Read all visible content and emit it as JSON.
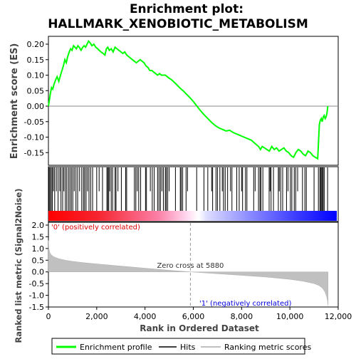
{
  "chart_data": [
    {
      "type": "line",
      "title_line1": "Enrichment plot:",
      "title_line2": "HALLMARK_XENOBIOTIC_METABOLISM",
      "ylabel": "Enrichment score (ES)",
      "ylim": [
        -0.2,
        0.225
      ],
      "xlim": [
        0,
        12000
      ],
      "y_ticks": [
        "0.20",
        "0.15",
        "0.10",
        "0.05",
        "0.00",
        "-0.05",
        "-0.10",
        "-0.15"
      ],
      "y_tick_values": [
        0.2,
        0.15,
        0.1,
        0.05,
        0.0,
        -0.05,
        -0.1,
        -0.15
      ],
      "series": [
        {
          "name": "Enrichment profile",
          "color": "#00ff00",
          "x": [
            0,
            40,
            80,
            130,
            180,
            230,
            300,
            360,
            430,
            500,
            560,
            620,
            680,
            740,
            800,
            860,
            920,
            980,
            1040,
            1100,
            1160,
            1220,
            1280,
            1350,
            1420,
            1480,
            1540,
            1600,
            1660,
            1720,
            1800,
            1880,
            1960,
            2040,
            2100,
            2180,
            2260,
            2340,
            2400,
            2460,
            2520,
            2600,
            2680,
            2760,
            2840,
            2920,
            3000,
            3080,
            3160,
            3240,
            3320,
            3400,
            3480,
            3560,
            3640,
            3720,
            3800,
            3880,
            3960,
            4040,
            4120,
            4200,
            4280,
            4360,
            4440,
            4520,
            4600,
            4680,
            4760,
            4840,
            4920,
            5000,
            5100,
            5200,
            5300,
            5400,
            5500,
            5600,
            5700,
            5800,
            5900,
            6000,
            6150,
            6300,
            6450,
            6600,
            6750,
            6900,
            7050,
            7200,
            7350,
            7500,
            7650,
            7800,
            7950,
            8100,
            8250,
            8400,
            8550,
            8700,
            8780,
            8850,
            8950,
            9050,
            9150,
            9250,
            9350,
            9450,
            9550,
            9650,
            9750,
            9850,
            9950,
            10050,
            10150,
            10250,
            10350,
            10450,
            10550,
            10650,
            10750,
            10850,
            10950,
            11050,
            11150,
            11220,
            11260,
            11300,
            11340,
            11380,
            11420,
            11460,
            11500,
            11540,
            11570
          ],
          "values": [
            0.0,
            0.02,
            0.04,
            0.06,
            0.055,
            0.07,
            0.085,
            0.095,
            0.08,
            0.1,
            0.115,
            0.13,
            0.15,
            0.14,
            0.16,
            0.175,
            0.185,
            0.18,
            0.195,
            0.19,
            0.185,
            0.195,
            0.19,
            0.18,
            0.19,
            0.195,
            0.19,
            0.2,
            0.21,
            0.205,
            0.195,
            0.2,
            0.19,
            0.185,
            0.18,
            0.175,
            0.17,
            0.165,
            0.185,
            0.19,
            0.18,
            0.185,
            0.175,
            0.19,
            0.185,
            0.18,
            0.175,
            0.17,
            0.175,
            0.165,
            0.16,
            0.155,
            0.15,
            0.145,
            0.14,
            0.145,
            0.15,
            0.145,
            0.14,
            0.13,
            0.125,
            0.115,
            0.115,
            0.11,
            0.105,
            0.1,
            0.105,
            0.1,
            0.1,
            0.1,
            0.095,
            0.09,
            0.085,
            0.078,
            0.07,
            0.062,
            0.055,
            0.048,
            0.04,
            0.032,
            0.024,
            0.015,
            0.0,
            -0.015,
            -0.028,
            -0.04,
            -0.052,
            -0.062,
            -0.07,
            -0.075,
            -0.08,
            -0.078,
            -0.085,
            -0.09,
            -0.095,
            -0.1,
            -0.105,
            -0.11,
            -0.12,
            -0.13,
            -0.14,
            -0.13,
            -0.135,
            -0.14,
            -0.145,
            -0.13,
            -0.14,
            -0.135,
            -0.145,
            -0.14,
            -0.135,
            -0.145,
            -0.15,
            -0.16,
            -0.165,
            -0.15,
            -0.14,
            -0.145,
            -0.155,
            -0.16,
            -0.145,
            -0.15,
            -0.16,
            -0.165,
            -0.17,
            -0.06,
            -0.045,
            -0.04,
            -0.05,
            -0.035,
            -0.03,
            -0.04,
            -0.035,
            -0.02,
            0.0
          ]
        }
      ]
    },
    {
      "type": "barcode",
      "series": [
        {
          "name": "Hits",
          "color": "#000000",
          "x": [
            30,
            70,
            120,
            160,
            210,
            260,
            330,
            400,
            470,
            520,
            590,
            640,
            700,
            760,
            830,
            890,
            950,
            1010,
            1070,
            1140,
            1210,
            1290,
            1380,
            1450,
            1500,
            1560,
            1620,
            1680,
            1750,
            1830,
            2000,
            2100,
            2240,
            2420,
            2460,
            2500,
            2540,
            2600,
            2660,
            2760,
            2800,
            2880,
            3020,
            3200,
            3240,
            3560,
            3620,
            3680,
            3740,
            3820,
            4020,
            4060,
            4220,
            4300,
            4380,
            4520,
            4580,
            4640,
            4700,
            4760,
            4840,
            4880,
            4940,
            5000,
            5260,
            5460,
            5500,
            5560,
            5700,
            5760,
            6140,
            6440,
            6600,
            6760,
            6800,
            6940,
            7000,
            7100,
            7200,
            7250,
            7320,
            7420,
            7540,
            7600,
            7800,
            7900,
            8000,
            8040,
            8160,
            8220,
            8500,
            8560,
            8700,
            8760,
            8800,
            8880,
            9140,
            9180,
            9220,
            9320,
            9520,
            9560,
            9620,
            9700,
            9860,
            9920,
            10020,
            10080,
            10180,
            10240,
            10320,
            10520,
            10620,
            10680,
            11000,
            11180,
            11240,
            11280,
            11320,
            11340,
            11380,
            11420,
            11560
          ],
          "heights": [
            1,
            1,
            1,
            1,
            0.5,
            1,
            0.5,
            1,
            0.5,
            1,
            1,
            0.5,
            1,
            1,
            1,
            1,
            1,
            1,
            0.5,
            1,
            1,
            0.5,
            1,
            1,
            1,
            1,
            0.5,
            1,
            1,
            1,
            1,
            0.5,
            1,
            1,
            1,
            1,
            0.5,
            1,
            1,
            1,
            1,
            0.5,
            1,
            1,
            1,
            1,
            1,
            0.5,
            1,
            1,
            1,
            1,
            0.5,
            1,
            1,
            1,
            1,
            1,
            0.5,
            1,
            1,
            1,
            1,
            0.5,
            1,
            1,
            1,
            1,
            1,
            0.5,
            1,
            1,
            1,
            0.5,
            1,
            1,
            1,
            1,
            0.5,
            1,
            1,
            1,
            0.5,
            1,
            1,
            1,
            0.5,
            1,
            1,
            1,
            1,
            0.5,
            1,
            1,
            1,
            1,
            1,
            0.5,
            1,
            1,
            1,
            0.5,
            1,
            1,
            1,
            0.5,
            1,
            1,
            1,
            1,
            0.5,
            1,
            1,
            1,
            1,
            1,
            1,
            1,
            1,
            1,
            1,
            1,
            1
          ]
        }
      ]
    },
    {
      "type": "heatmap",
      "description_colors": [
        "#ff0000",
        "#ffb0b0",
        "#ffffff",
        "#b0b0ff",
        "#0000ff"
      ]
    },
    {
      "type": "area",
      "ylabel": "Ranked list metric (Signal2Noise)",
      "xlabel": "Rank in Ordered Dataset",
      "ylim": [
        -1.5,
        2.0
      ],
      "xlim": [
        0,
        12000
      ],
      "y_ticks": [
        "2.0",
        "1.5",
        "1.0",
        "0.5",
        "0.0",
        "-0.5",
        "-1.0",
        "-1.5"
      ],
      "y_tick_values": [
        2.0,
        1.5,
        1.0,
        0.5,
        0.0,
        -0.5,
        -1.0,
        -1.5
      ],
      "x_ticks": [
        "0",
        "2,000",
        "4,000",
        "6,000",
        "8,000",
        "10,000",
        "12,000"
      ],
      "x_tick_values": [
        0,
        2000,
        4000,
        6000,
        8000,
        10000,
        12000
      ],
      "zero_cross_label": "Zero cross at 5880",
      "zero_cross_x": 5880,
      "pos_label": "'0' (positively correlated)",
      "neg_label": "'1' (negatively correlated)",
      "series": [
        {
          "name": "Ranking metric scores",
          "color": "#c0c0c0",
          "x": [
            0,
            20,
            50,
            100,
            200,
            400,
            700,
            1000,
            1500,
            2000,
            3000,
            4000,
            5000,
            5880,
            7000,
            8000,
            9000,
            10000,
            10500,
            11000,
            11200,
            11350,
            11450,
            11520,
            11560,
            11580
          ],
          "values": [
            1.35,
            1.0,
            0.85,
            0.75,
            0.66,
            0.57,
            0.5,
            0.45,
            0.39,
            0.34,
            0.25,
            0.16,
            0.07,
            0.0,
            -0.08,
            -0.15,
            -0.22,
            -0.32,
            -0.39,
            -0.5,
            -0.58,
            -0.7,
            -0.85,
            -1.05,
            -1.25,
            -1.45
          ]
        }
      ]
    }
  ],
  "legend": {
    "items": [
      {
        "label": "Enrichment profile",
        "color": "#00ff00"
      },
      {
        "label": "Hits",
        "color": "#000000"
      },
      {
        "label": "Ranking metric scores",
        "color": "#c0c0c0"
      }
    ]
  }
}
